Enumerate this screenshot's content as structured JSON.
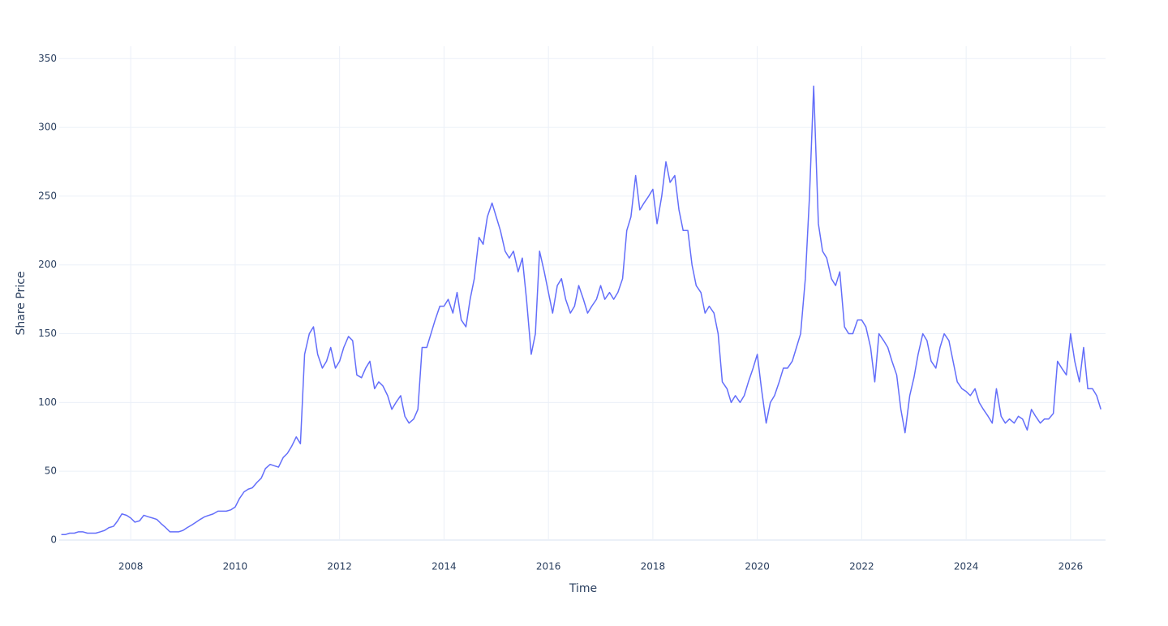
{
  "chart_data": {
    "type": "line",
    "x_label": "Time",
    "y_label": "Share Price",
    "xlim": [
      2006.63,
      2026.67
    ],
    "ylim": [
      0,
      359
    ],
    "xticks": [
      2008,
      2010,
      2012,
      2014,
      2016,
      2018,
      2020,
      2022,
      2024,
      2026
    ],
    "yticks": [
      0,
      50,
      100,
      150,
      200,
      250,
      300,
      350
    ],
    "grid": true,
    "x": [
      2006.67,
      2006.75,
      2006.83,
      2006.92,
      2007.0,
      2007.08,
      2007.17,
      2007.25,
      2007.33,
      2007.42,
      2007.5,
      2007.58,
      2007.67,
      2007.75,
      2007.83,
      2007.92,
      2008.0,
      2008.08,
      2008.17,
      2008.25,
      2008.33,
      2008.42,
      2008.5,
      2008.58,
      2008.67,
      2008.75,
      2008.83,
      2008.92,
      2009.0,
      2009.08,
      2009.17,
      2009.25,
      2009.33,
      2009.42,
      2009.5,
      2009.58,
      2009.67,
      2009.75,
      2009.83,
      2009.92,
      2010.0,
      2010.08,
      2010.17,
      2010.25,
      2010.33,
      2010.42,
      2010.5,
      2010.58,
      2010.67,
      2010.75,
      2010.83,
      2010.92,
      2011.0,
      2011.08,
      2011.17,
      2011.25,
      2011.33,
      2011.42,
      2011.5,
      2011.58,
      2011.67,
      2011.75,
      2011.83,
      2011.92,
      2012.0,
      2012.08,
      2012.17,
      2012.25,
      2012.33,
      2012.42,
      2012.5,
      2012.58,
      2012.67,
      2012.75,
      2012.83,
      2012.92,
      2013.0,
      2013.08,
      2013.17,
      2013.25,
      2013.33,
      2013.42,
      2013.5,
      2013.58,
      2013.67,
      2013.75,
      2013.83,
      2013.92,
      2014.0,
      2014.08,
      2014.17,
      2014.25,
      2014.33,
      2014.42,
      2014.5,
      2014.58,
      2014.67,
      2014.75,
      2014.83,
      2014.92,
      2015.0,
      2015.08,
      2015.17,
      2015.25,
      2015.33,
      2015.42,
      2015.5,
      2015.58,
      2015.67,
      2015.75,
      2015.83,
      2015.92,
      2016.0,
      2016.08,
      2016.17,
      2016.25,
      2016.33,
      2016.42,
      2016.5,
      2016.58,
      2016.67,
      2016.75,
      2016.83,
      2016.92,
      2017.0,
      2017.08,
      2017.17,
      2017.25,
      2017.33,
      2017.42,
      2017.5,
      2017.58,
      2017.67,
      2017.75,
      2017.83,
      2017.92,
      2018.0,
      2018.08,
      2018.17,
      2018.25,
      2018.33,
      2018.42,
      2018.5,
      2018.58,
      2018.67,
      2018.75,
      2018.83,
      2018.92,
      2019.0,
      2019.08,
      2019.17,
      2019.25,
      2019.33,
      2019.42,
      2019.5,
      2019.58,
      2019.67,
      2019.75,
      2019.83,
      2019.92,
      2020.0,
      2020.08,
      2020.17,
      2020.25,
      2020.33,
      2020.42,
      2020.5,
      2020.58,
      2020.67,
      2020.75,
      2020.83,
      2020.92,
      2021.0,
      2021.08,
      2021.17,
      2021.25,
      2021.33,
      2021.42,
      2021.5,
      2021.58,
      2021.67,
      2021.75,
      2021.83,
      2021.92,
      2022.0,
      2022.08,
      2022.17,
      2022.25,
      2022.33,
      2022.42,
      2022.5,
      2022.58,
      2022.67,
      2022.75,
      2022.83,
      2022.92,
      2023.0,
      2023.08,
      2023.17,
      2023.25,
      2023.33,
      2023.42,
      2023.5,
      2023.58,
      2023.67,
      2023.75,
      2023.83,
      2023.92,
      2024.0,
      2024.08,
      2024.17,
      2024.25,
      2024.33,
      2024.42,
      2024.5,
      2024.58,
      2024.67,
      2024.75,
      2024.83,
      2024.92,
      2025.0,
      2025.08,
      2025.17,
      2025.25,
      2025.33,
      2025.42,
      2025.5,
      2025.58,
      2025.67,
      2025.75,
      2025.83,
      2025.92,
      2026.0,
      2026.08,
      2026.17,
      2026.25,
      2026.33,
      2026.42,
      2026.5,
      2026.58
    ],
    "series": [
      {
        "color": "#636efa",
        "values": [
          4,
          4,
          5,
          5,
          6,
          6,
          5,
          5,
          5,
          6,
          7,
          9,
          10,
          14,
          19,
          18,
          16,
          13,
          14,
          18,
          17,
          16,
          15,
          12,
          9,
          6,
          6,
          6,
          7,
          9,
          11,
          13,
          15,
          17,
          18,
          19,
          21,
          21,
          21,
          22,
          24,
          30,
          35,
          37,
          38,
          42,
          45,
          52,
          55,
          54,
          53,
          60,
          63,
          68,
          75,
          70,
          135,
          150,
          155,
          135,
          125,
          130,
          140,
          125,
          130,
          140,
          148,
          145,
          120,
          118,
          125,
          130,
          110,
          115,
          112,
          105,
          95,
          100,
          105,
          90,
          85,
          88,
          95,
          140,
          140,
          150,
          160,
          170,
          170,
          175,
          165,
          180,
          160,
          155,
          175,
          190,
          220,
          215,
          235,
          245,
          235,
          225,
          210,
          205,
          210,
          195,
          205,
          175,
          135,
          150,
          210,
          195,
          180,
          165,
          185,
          190,
          175,
          165,
          170,
          185,
          175,
          165,
          170,
          175,
          185,
          175,
          180,
          175,
          180,
          190,
          225,
          235,
          265,
          240,
          245,
          250,
          255,
          230,
          250,
          275,
          260,
          265,
          240,
          225,
          225,
          200,
          185,
          180,
          165,
          170,
          165,
          150,
          115,
          110,
          100,
          105,
          100,
          105,
          115,
          125,
          135,
          110,
          85,
          100,
          105,
          115,
          125,
          125,
          130,
          140,
          150,
          190,
          250,
          330,
          230,
          210,
          205,
          190,
          185,
          195,
          155,
          150,
          150,
          160,
          160,
          155,
          140,
          115,
          150,
          145,
          140,
          130,
          120,
          95,
          78,
          105,
          118,
          135,
          150,
          145,
          130,
          125,
          140,
          150,
          145,
          130,
          115,
          110,
          108,
          105,
          110,
          100,
          95,
          90,
          85,
          110,
          90,
          85,
          88,
          85,
          90,
          88,
          80,
          95,
          90,
          85,
          88,
          88,
          92,
          130,
          125,
          120,
          150,
          130,
          115,
          140,
          110,
          110,
          105,
          95
        ]
      }
    ]
  }
}
